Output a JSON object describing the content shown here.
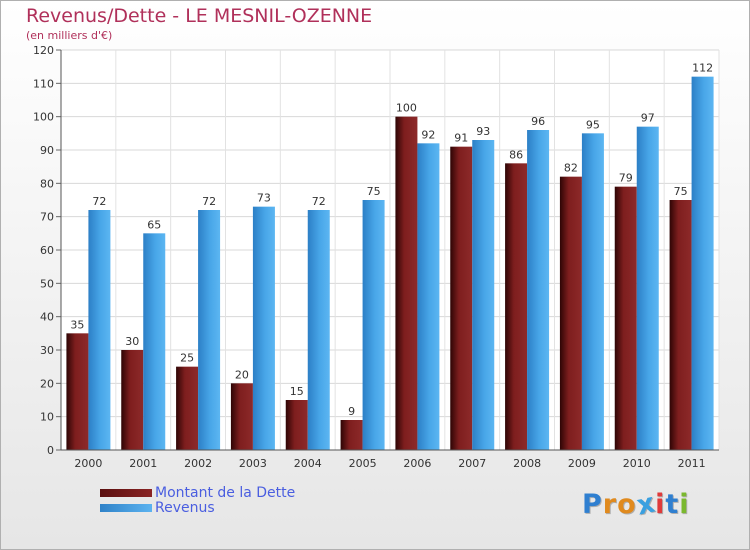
{
  "header": {
    "title": "Revenus/Dette - LE MESNIL-OZENNE",
    "subtitle": "(en milliers d'€)"
  },
  "chart_data": {
    "type": "bar",
    "categories": [
      "2000",
      "2001",
      "2002",
      "2003",
      "2004",
      "2005",
      "2006",
      "2007",
      "2008",
      "2009",
      "2010",
      "2011"
    ],
    "series": [
      {
        "name": "Montant de la Dette",
        "color": "#7a1c1c",
        "values": [
          35,
          30,
          25,
          20,
          15,
          9,
          100,
          91,
          86,
          82,
          79,
          75
        ]
      },
      {
        "name": "Revenus",
        "color": "#3f9de0",
        "values": [
          72,
          65,
          72,
          73,
          72,
          75,
          92,
          93,
          96,
          95,
          97,
          112
        ]
      }
    ],
    "ylim": [
      0,
      120
    ],
    "yticks": [
      0,
      10,
      20,
      30,
      40,
      50,
      60,
      70,
      80,
      90,
      100,
      110,
      120
    ],
    "grid": true,
    "legend_position": "bottom-left"
  },
  "legend": {
    "items": [
      {
        "label": "Montant de la Dette",
        "color": "#7a1c1c"
      },
      {
        "label": "Revenus",
        "color": "#3f9de0"
      }
    ]
  },
  "logo": {
    "text": "Proxiti",
    "letter_colors": [
      "#2f7fd0",
      "#e08a1e",
      "#e08a1e",
      "#3aa0e0",
      "#e03a3a",
      "#2f7fd0",
      "#7ab82e"
    ]
  }
}
